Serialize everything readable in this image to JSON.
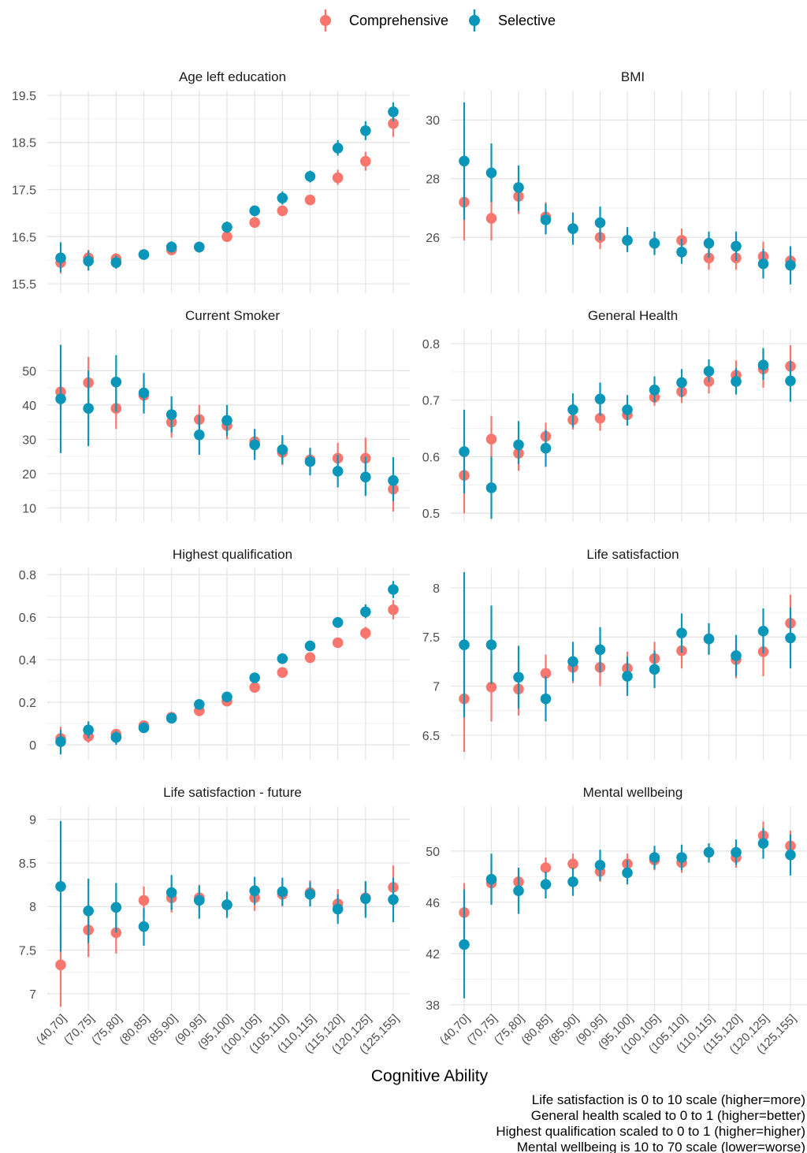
{
  "legend": {
    "items": [
      {
        "label": "Comprehensive",
        "color": "#F8766D"
      },
      {
        "label": "Selective",
        "color": "#0A96B8"
      }
    ]
  },
  "xlabel": "Cognitive Ability",
  "footnotes": [
    "Life satisfaction is 0 to 10 scale (higher=more)",
    "General health scaled to 0 to 1 (higher=better)",
    "Highest qualification scaled to 0 to 1 (higher=higher)",
    "Mental wellbeing is 10 to 70 scale (lower=worse)"
  ],
  "chart_data": [
    {
      "type": "scatter",
      "title": "Age left education",
      "categories": [
        "(40,70]",
        "(70,75]",
        "(75,80]",
        "(80,85]",
        "(85,90]",
        "(90,95]",
        "(95,100]",
        "(100,105]",
        "(105,110]",
        "(110,115]",
        "(115,120]",
        "(120,125]",
        "(125,155]"
      ],
      "ylim": [
        15.3,
        19.6
      ],
      "yticks": [
        15.5,
        16.5,
        17.5,
        18.5,
        19.5
      ],
      "series": [
        {
          "name": "Comprehensive",
          "color": "#F8766D",
          "values": [
            15.95,
            16.05,
            16.03,
            16.12,
            16.22,
            16.28,
            16.5,
            16.8,
            17.05,
            17.28,
            17.75,
            18.1,
            18.9
          ],
          "low": [
            15.72,
            15.92,
            15.9,
            16.05,
            16.14,
            16.2,
            16.43,
            16.72,
            16.97,
            17.22,
            17.6,
            17.9,
            18.62
          ],
          "high": [
            16.18,
            16.22,
            16.15,
            16.2,
            16.3,
            16.36,
            16.57,
            16.88,
            17.13,
            17.36,
            17.92,
            18.3,
            19.18
          ]
        },
        {
          "name": "Selective",
          "color": "#0A96B8",
          "values": [
            16.05,
            15.98,
            15.95,
            16.12,
            16.28,
            16.28,
            16.7,
            17.05,
            17.32,
            17.78,
            18.38,
            18.75,
            19.15
          ],
          "low": [
            15.75,
            15.78,
            15.82,
            16.04,
            16.16,
            16.16,
            16.58,
            16.93,
            17.18,
            17.65,
            18.22,
            18.55,
            18.95
          ],
          "high": [
            16.38,
            16.2,
            16.1,
            16.2,
            16.4,
            16.38,
            16.82,
            17.15,
            17.46,
            17.9,
            18.55,
            18.95,
            19.35
          ]
        }
      ]
    },
    {
      "type": "scatter",
      "title": "BMI",
      "categories": [
        "(40,70]",
        "(70,75]",
        "(75,80]",
        "(80,85]",
        "(85,90]",
        "(90,95]",
        "(95,100]",
        "(100,105]",
        "(105,110]",
        "(110,115]",
        "(115,120]",
        "(120,125]",
        "(125,155]"
      ],
      "ylim": [
        24.1,
        31.0
      ],
      "yticks": [
        26,
        28,
        30
      ],
      "series": [
        {
          "name": "Comprehensive",
          "color": "#F8766D",
          "values": [
            27.2,
            26.65,
            27.4,
            26.7,
            26.3,
            26.0,
            25.9,
            25.8,
            25.9,
            25.3,
            25.3,
            25.35,
            25.2
          ],
          "low": [
            25.9,
            25.9,
            26.8,
            26.2,
            25.8,
            25.6,
            25.6,
            25.5,
            25.6,
            24.9,
            24.9,
            24.95,
            24.85
          ],
          "high": [
            28.5,
            27.4,
            28.0,
            27.2,
            26.8,
            26.4,
            26.2,
            26.1,
            26.3,
            25.7,
            25.7,
            25.85,
            25.65
          ]
        },
        {
          "name": "Selective",
          "color": "#0A96B8",
          "values": [
            28.6,
            28.2,
            27.7,
            26.6,
            26.3,
            26.5,
            25.9,
            25.8,
            25.5,
            25.8,
            25.7,
            25.1,
            25.05
          ],
          "low": [
            26.6,
            27.2,
            26.9,
            26.1,
            25.75,
            25.9,
            25.5,
            25.4,
            25.1,
            25.3,
            25.2,
            24.6,
            24.4
          ],
          "high": [
            30.6,
            29.2,
            28.45,
            27.15,
            26.85,
            27.05,
            26.35,
            26.2,
            25.95,
            26.2,
            26.2,
            25.6,
            25.7
          ]
        }
      ]
    },
    {
      "type": "scatter",
      "title": "Current Smoker",
      "categories": [
        "(40,70]",
        "(70,75]",
        "(75,80]",
        "(80,85]",
        "(85,90]",
        "(90,95]",
        "(95,100]",
        "(100,105]",
        "(105,110]",
        "(110,115]",
        "(115,120]",
        "(120,125]",
        "(125,155]"
      ],
      "ylim": [
        6.0,
        62.0
      ],
      "yticks": [
        10,
        20,
        30,
        40,
        50
      ],
      "series": [
        {
          "name": "Comprehensive",
          "color": "#F8766D",
          "values": [
            43.8,
            46.5,
            39.0,
            42.8,
            35.0,
            35.8,
            34.0,
            29.3,
            26.2,
            24.0,
            24.5,
            24.5,
            15.5
          ],
          "low": [
            38.0,
            39.0,
            33.0,
            38.0,
            30.5,
            31.0,
            30.0,
            25.5,
            22.5,
            20.5,
            20.0,
            18.5,
            9.0
          ],
          "high": [
            50.0,
            54.0,
            46.0,
            47.5,
            40.0,
            40.0,
            38.0,
            33.0,
            29.5,
            27.5,
            29.0,
            30.5,
            21.0
          ]
        },
        {
          "name": "Selective",
          "color": "#0A96B8",
          "values": [
            41.8,
            39.0,
            46.7,
            43.5,
            37.2,
            31.3,
            35.5,
            28.4,
            27.0,
            23.5,
            20.7,
            19.0,
            18.0
          ],
          "low": [
            26.0,
            28.0,
            38.0,
            37.5,
            32.0,
            25.5,
            31.0,
            24.0,
            22.8,
            19.5,
            16.0,
            13.5,
            12.0
          ],
          "high": [
            57.5,
            50.0,
            54.5,
            49.3,
            42.5,
            37.0,
            40.0,
            33.0,
            31.2,
            27.5,
            25.5,
            25.0,
            24.8
          ]
        }
      ]
    },
    {
      "type": "scatter",
      "title": "General Health",
      "categories": [
        "(40,70]",
        "(70,75]",
        "(75,80]",
        "(80,85]",
        "(85,90]",
        "(90,95]",
        "(95,100]",
        "(100,105]",
        "(105,110]",
        "(110,115]",
        "(115,120]",
        "(120,125]",
        "(125,155]"
      ],
      "ylim": [
        0.485,
        0.825
      ],
      "yticks": [
        0.5,
        0.6,
        0.7,
        0.8
      ],
      "series": [
        {
          "name": "Comprehensive",
          "color": "#F8766D",
          "values": [
            0.567,
            0.631,
            0.606,
            0.636,
            0.665,
            0.668,
            0.674,
            0.705,
            0.715,
            0.733,
            0.744,
            0.755,
            0.76
          ],
          "low": [
            0.5,
            0.598,
            0.575,
            0.617,
            0.648,
            0.646,
            0.664,
            0.69,
            0.695,
            0.712,
            0.725,
            0.722,
            0.728
          ],
          "high": [
            0.635,
            0.672,
            0.638,
            0.66,
            0.683,
            0.69,
            0.684,
            0.72,
            0.735,
            0.752,
            0.77,
            0.788,
            0.797
          ]
        },
        {
          "name": "Selective",
          "color": "#0A96B8",
          "values": [
            0.609,
            0.545,
            0.621,
            0.615,
            0.683,
            0.702,
            0.683,
            0.718,
            0.731,
            0.751,
            0.733,
            0.762,
            0.734
          ],
          "low": [
            0.535,
            0.49,
            0.587,
            0.582,
            0.652,
            0.672,
            0.655,
            0.696,
            0.705,
            0.732,
            0.71,
            0.736,
            0.697
          ],
          "high": [
            0.683,
            0.6,
            0.663,
            0.647,
            0.712,
            0.731,
            0.709,
            0.742,
            0.755,
            0.772,
            0.757,
            0.792,
            0.77
          ]
        }
      ]
    },
    {
      "type": "scatter",
      "title": "Highest qualification",
      "categories": [
        "(40,70]",
        "(70,75]",
        "(75,80]",
        "(80,85]",
        "(85,90]",
        "(90,95]",
        "(95,100]",
        "(100,105]",
        "(105,110]",
        "(110,115]",
        "(115,120]",
        "(120,125]",
        "(125,155]"
      ],
      "ylim": [
        -0.07,
        0.83
      ],
      "yticks": [
        0.0,
        0.2,
        0.4,
        0.6,
        0.8
      ],
      "series": [
        {
          "name": "Comprehensive",
          "color": "#F8766D",
          "values": [
            0.03,
            0.04,
            0.05,
            0.09,
            0.13,
            0.16,
            0.205,
            0.27,
            0.34,
            0.41,
            0.48,
            0.525,
            0.635
          ],
          "low": [
            0.0,
            0.01,
            0.03,
            0.075,
            0.115,
            0.14,
            0.19,
            0.255,
            0.325,
            0.395,
            0.46,
            0.495,
            0.59
          ],
          "high": [
            0.085,
            0.075,
            0.07,
            0.105,
            0.145,
            0.18,
            0.22,
            0.285,
            0.355,
            0.425,
            0.5,
            0.555,
            0.68
          ]
        },
        {
          "name": "Selective",
          "color": "#0A96B8",
          "values": [
            0.015,
            0.07,
            0.035,
            0.08,
            0.125,
            0.19,
            0.225,
            0.315,
            0.405,
            0.465,
            0.575,
            0.625,
            0.73
          ],
          "low": [
            -0.045,
            0.03,
            0.0,
            0.06,
            0.105,
            0.17,
            0.205,
            0.295,
            0.38,
            0.445,
            0.55,
            0.595,
            0.69
          ],
          "high": [
            0.07,
            0.11,
            0.065,
            0.1,
            0.145,
            0.21,
            0.245,
            0.335,
            0.43,
            0.485,
            0.6,
            0.66,
            0.77
          ]
        }
      ]
    },
    {
      "type": "scatter",
      "title": "Life satisfaction",
      "categories": [
        "(40,70]",
        "(70,75]",
        "(75,80]",
        "(80,85]",
        "(85,90]",
        "(90,95]",
        "(95,100]",
        "(100,105]",
        "(105,110]",
        "(110,115]",
        "(115,120]",
        "(120,125]",
        "(125,155]"
      ],
      "ylim": [
        6.25,
        8.2
      ],
      "yticks": [
        6.5,
        7.0,
        7.5,
        8.0
      ],
      "series": [
        {
          "name": "Comprehensive",
          "color": "#F8766D",
          "values": [
            6.87,
            6.99,
            6.97,
            7.13,
            7.19,
            7.19,
            7.18,
            7.28,
            7.36,
            7.48,
            7.27,
            7.35,
            7.64
          ],
          "low": [
            6.33,
            6.64,
            6.7,
            6.95,
            7.03,
            7.0,
            7.0,
            7.11,
            7.18,
            7.32,
            7.08,
            7.1,
            7.35
          ],
          "high": [
            7.42,
            7.33,
            7.24,
            7.32,
            7.36,
            7.37,
            7.35,
            7.45,
            7.54,
            7.63,
            7.46,
            7.6,
            7.93
          ]
        },
        {
          "name": "Selective",
          "color": "#0A96B8",
          "values": [
            7.42,
            7.42,
            7.09,
            6.87,
            7.25,
            7.37,
            7.1,
            7.17,
            7.54,
            7.48,
            7.31,
            7.56,
            7.49
          ],
          "low": [
            6.68,
            7.02,
            6.77,
            6.64,
            7.05,
            7.14,
            6.9,
            6.98,
            7.34,
            7.32,
            7.1,
            7.33,
            7.18
          ],
          "high": [
            8.16,
            7.82,
            7.41,
            7.1,
            7.45,
            7.6,
            7.3,
            7.36,
            7.74,
            7.64,
            7.52,
            7.79,
            7.8
          ]
        }
      ]
    },
    {
      "type": "scatter",
      "title": "Life satisfaction - future",
      "categories": [
        "(40,70]",
        "(70,75]",
        "(75,80]",
        "(80,85]",
        "(85,90]",
        "(90,95]",
        "(95,100]",
        "(100,105]",
        "(105,110]",
        "(110,115]",
        "(115,120]",
        "(120,125]",
        "(125,155]"
      ],
      "ylim": [
        6.8,
        9.15
      ],
      "yticks": [
        7.0,
        7.5,
        8.0,
        8.5,
        9.0
      ],
      "series": [
        {
          "name": "Comprehensive",
          "color": "#F8766D",
          "values": [
            7.33,
            7.73,
            7.7,
            8.07,
            8.1,
            8.1,
            8.02,
            8.1,
            8.14,
            8.16,
            8.03,
            8.1,
            8.22
          ],
          "low": [
            6.85,
            7.42,
            7.46,
            7.9,
            7.93,
            7.95,
            7.87,
            7.95,
            8.0,
            8.02,
            7.87,
            7.92,
            7.97
          ],
          "high": [
            7.8,
            8.03,
            7.95,
            8.23,
            8.26,
            8.25,
            8.17,
            8.25,
            8.28,
            8.3,
            8.2,
            8.28,
            8.47
          ]
        },
        {
          "name": "Selective",
          "color": "#0A96B8",
          "values": [
            8.23,
            7.95,
            7.99,
            7.77,
            8.16,
            8.07,
            8.02,
            8.18,
            8.17,
            8.14,
            7.97,
            8.09,
            8.08
          ],
          "low": [
            7.48,
            7.58,
            7.7,
            7.55,
            7.96,
            7.86,
            7.87,
            8.02,
            8.01,
            8.0,
            7.8,
            7.87,
            7.82
          ],
          "high": [
            8.98,
            8.32,
            8.27,
            7.98,
            8.36,
            8.24,
            8.17,
            8.34,
            8.33,
            8.28,
            8.14,
            8.29,
            8.33
          ]
        }
      ]
    },
    {
      "type": "scatter",
      "title": "Mental wellbeing",
      "categories": [
        "(40,70]",
        "(70,75]",
        "(75,80]",
        "(80,85]",
        "(85,90]",
        "(90,95]",
        "(95,100]",
        "(100,105]",
        "(105,110]",
        "(110,115]",
        "(115,120]",
        "(120,125]",
        "(125,155]"
      ],
      "ylim": [
        37.5,
        53.5
      ],
      "yticks": [
        38,
        42,
        46,
        50
      ],
      "series": [
        {
          "name": "Comprehensive",
          "color": "#F8766D",
          "values": [
            45.2,
            47.5,
            47.6,
            48.7,
            49.0,
            48.4,
            49.0,
            49.3,
            49.1,
            49.9,
            49.5,
            51.2,
            50.4
          ],
          "low": [
            43.0,
            46.0,
            46.7,
            48.0,
            48.2,
            47.6,
            48.2,
            48.5,
            48.3,
            49.2,
            48.7,
            50.2,
            49.3
          ],
          "high": [
            47.5,
            48.9,
            48.6,
            49.5,
            49.8,
            49.2,
            49.8,
            50.1,
            49.9,
            50.6,
            50.3,
            52.3,
            51.6
          ]
        },
        {
          "name": "Selective",
          "color": "#0A96B8",
          "values": [
            42.7,
            47.8,
            46.9,
            47.4,
            47.6,
            48.9,
            48.3,
            49.5,
            49.5,
            49.9,
            49.9,
            50.6,
            49.7
          ],
          "low": [
            38.5,
            45.8,
            45.1,
            46.3,
            46.5,
            47.7,
            47.4,
            48.6,
            48.5,
            49.1,
            48.9,
            49.4,
            48.1
          ],
          "high": [
            47.0,
            49.8,
            48.7,
            48.4,
            48.7,
            50.1,
            49.3,
            50.4,
            50.5,
            50.6,
            50.9,
            51.8,
            51.3
          ]
        }
      ]
    }
  ]
}
